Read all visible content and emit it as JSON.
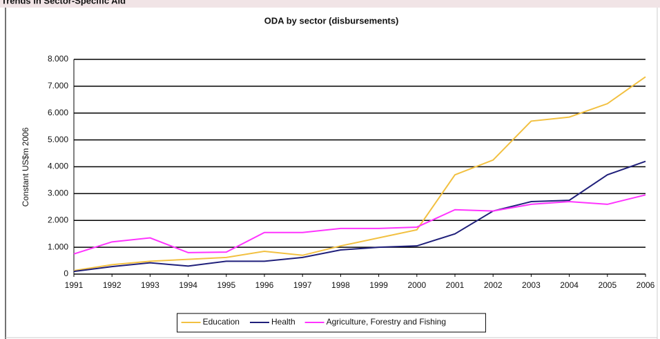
{
  "header": {
    "title": "Trends in Sector-Specific Aid"
  },
  "chart_data": {
    "type": "line",
    "title": "ODA by sector (disbursements)",
    "y_label": "Constant US$m 2006",
    "categories": [
      "1991",
      "1992",
      "1993",
      "1994",
      "1995",
      "1996",
      "1997",
      "1998",
      "1999",
      "2000",
      "2001",
      "2002",
      "2003",
      "2004",
      "2005",
      "2006"
    ],
    "series": [
      {
        "name": "Education",
        "color": "#f2c040",
        "values": [
          130,
          350,
          480,
          550,
          620,
          850,
          700,
          1050,
          1350,
          1650,
          3700,
          4250,
          5700,
          5850,
          6350,
          7350
        ]
      },
      {
        "name": "Health",
        "color": "#1f1f7a",
        "values": [
          100,
          280,
          420,
          300,
          480,
          480,
          620,
          900,
          1000,
          1050,
          1500,
          2350,
          2700,
          2750,
          3700,
          4200
        ]
      },
      {
        "name": "Agriculture, Forestry and Fishing",
        "color": "#ff33ff",
        "values": [
          750,
          1200,
          1350,
          800,
          820,
          1550,
          1550,
          1700,
          1700,
          1750,
          2400,
          2350,
          2600,
          2700,
          2600,
          2950
        ]
      }
    ],
    "ylim": [
      0,
      8000
    ],
    "yticks": [
      0,
      {
        "value": 1000,
        "label": "1.000"
      },
      {
        "value": 2000,
        "label": "2.000"
      },
      {
        "value": 3000,
        "label": "3.000"
      },
      {
        "value": 4000,
        "label": "4.000"
      },
      {
        "value": 5000,
        "label": "5.000"
      },
      {
        "value": 6000,
        "label": "6.000"
      },
      {
        "value": 7000,
        "label": "7.000"
      },
      {
        "value": 8000,
        "label": "8.000"
      }
    ],
    "grid": true,
    "legend": "bottom"
  }
}
